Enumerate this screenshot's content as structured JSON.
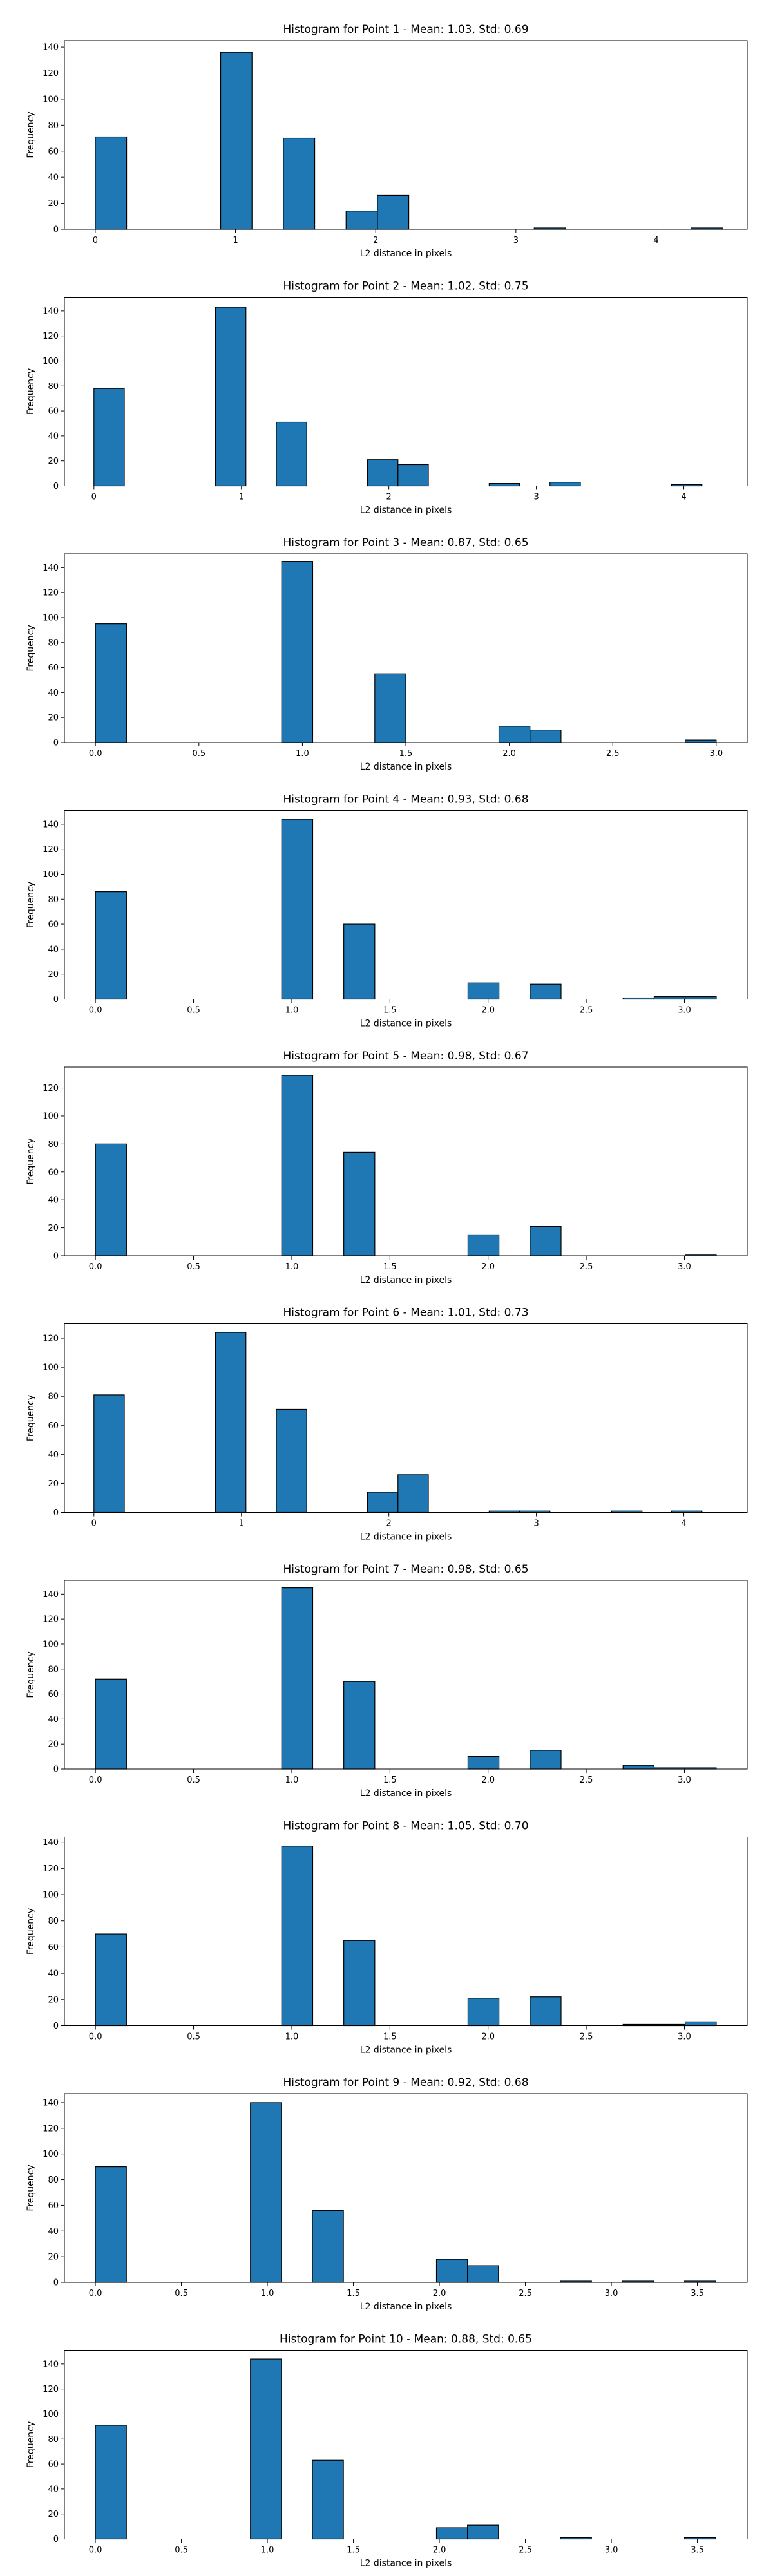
{
  "chart_data": [
    {
      "type": "bar",
      "title": "Histogram for Point 1 - Mean: 1.03, Std: 0.69",
      "xlabel": "L2 distance in pixels",
      "ylabel": "Frequency",
      "xlim": [
        -0.22,
        4.65
      ],
      "ylim": [
        0,
        145
      ],
      "xticks": [
        0,
        1,
        2,
        3,
        4
      ],
      "xtick_labels": [
        "0",
        "1",
        "2",
        "3",
        "4"
      ],
      "yticks": [
        0,
        20,
        40,
        60,
        80,
        100,
        120,
        140
      ],
      "ytick_labels": [
        "0",
        "20",
        "40",
        "60",
        "80",
        "100",
        "120",
        "140"
      ],
      "grid": false,
      "bars": [
        {
          "x0": 0.0,
          "x1": 0.2236,
          "value": 71
        },
        {
          "x0": 0.8944,
          "x1": 1.118,
          "value": 136
        },
        {
          "x0": 1.3416,
          "x1": 1.5652,
          "value": 70
        },
        {
          "x0": 1.7889,
          "x1": 2.0125,
          "value": 14
        },
        {
          "x0": 2.0125,
          "x1": 2.2361,
          "value": 26
        },
        {
          "x0": 3.1305,
          "x1": 3.3541,
          "value": 1
        },
        {
          "x0": 4.2485,
          "x1": 4.4721,
          "value": 1
        }
      ]
    },
    {
      "type": "bar",
      "title": "Histogram for Point 2 - Mean: 1.02, Std: 0.75",
      "xlabel": "L2 distance in pixels",
      "ylabel": "Frequency",
      "xlim": [
        -0.2,
        4.43
      ],
      "ylim": [
        0,
        151
      ],
      "xticks": [
        0,
        1,
        2,
        3,
        4
      ],
      "xtick_labels": [
        "0",
        "1",
        "2",
        "3",
        "4"
      ],
      "yticks": [
        0,
        20,
        40,
        60,
        80,
        100,
        120,
        140
      ],
      "ytick_labels": [
        "0",
        "20",
        "40",
        "60",
        "80",
        "100",
        "120",
        "140"
      ],
      "grid": false,
      "bars": [
        {
          "x0": 0.0,
          "x1": 0.2062,
          "value": 78
        },
        {
          "x0": 0.8246,
          "x1": 1.0308,
          "value": 143
        },
        {
          "x0": 1.2369,
          "x1": 1.4431,
          "value": 51
        },
        {
          "x0": 1.8554,
          "x1": 2.0616,
          "value": 21
        },
        {
          "x0": 2.0616,
          "x1": 2.2678,
          "value": 17
        },
        {
          "x0": 2.6801,
          "x1": 2.8863,
          "value": 2
        },
        {
          "x0": 3.0924,
          "x1": 3.2986,
          "value": 3
        },
        {
          "x0": 3.917,
          "x1": 4.1231,
          "value": 1
        }
      ]
    },
    {
      "type": "bar",
      "title": "Histogram for Point 3 - Mean: 0.87, Std: 0.65",
      "xlabel": "L2 distance in pixels",
      "ylabel": "Frequency",
      "xlim": [
        -0.15,
        3.15
      ],
      "ylim": [
        0,
        151
      ],
      "xticks": [
        0,
        0.5,
        1,
        1.5,
        2,
        2.5,
        3
      ],
      "xtick_labels": [
        "0.0",
        "0.5",
        "1.0",
        "1.5",
        "2.0",
        "2.5",
        "3.0"
      ],
      "yticks": [
        0,
        20,
        40,
        60,
        80,
        100,
        120,
        140
      ],
      "ytick_labels": [
        "0",
        "20",
        "40",
        "60",
        "80",
        "100",
        "120",
        "140"
      ],
      "grid": false,
      "bars": [
        {
          "x0": 0.0,
          "x1": 0.15,
          "value": 95
        },
        {
          "x0": 0.9,
          "x1": 1.05,
          "value": 145
        },
        {
          "x0": 1.35,
          "x1": 1.5,
          "value": 55
        },
        {
          "x0": 1.95,
          "x1": 2.1,
          "value": 13
        },
        {
          "x0": 2.1,
          "x1": 2.25,
          "value": 10
        },
        {
          "x0": 2.85,
          "x1": 3.0,
          "value": 2
        }
      ]
    },
    {
      "type": "bar",
      "title": "Histogram for Point 4 - Mean: 0.93, Std: 0.68",
      "xlabel": "L2 distance in pixels",
      "ylabel": "Frequency",
      "xlim": [
        -0.158,
        3.32
      ],
      "ylim": [
        0,
        151
      ],
      "xticks": [
        0,
        0.5,
        1,
        1.5,
        2,
        2.5,
        3
      ],
      "xtick_labels": [
        "0.0",
        "0.5",
        "1.0",
        "1.5",
        "2.0",
        "2.5",
        "3.0"
      ],
      "yticks": [
        0,
        20,
        40,
        60,
        80,
        100,
        120,
        140
      ],
      "ytick_labels": [
        "0",
        "20",
        "40",
        "60",
        "80",
        "100",
        "120",
        "140"
      ],
      "grid": false,
      "bars": [
        {
          "x0": 0.0,
          "x1": 0.1581,
          "value": 86
        },
        {
          "x0": 0.9487,
          "x1": 1.1068,
          "value": 144
        },
        {
          "x0": 1.2649,
          "x1": 1.423,
          "value": 60
        },
        {
          "x0": 1.8974,
          "x1": 2.0555,
          "value": 13
        },
        {
          "x0": 2.2136,
          "x1": 2.3717,
          "value": 12
        },
        {
          "x0": 2.6876,
          "x1": 2.8457,
          "value": 1
        },
        {
          "x0": 2.8457,
          "x1": 3.0038,
          "value": 2
        },
        {
          "x0": 3.0038,
          "x1": 3.1623,
          "value": 2
        }
      ]
    },
    {
      "type": "bar",
      "title": "Histogram for Point 5 - Mean: 0.98, Std: 0.67",
      "xlabel": "L2 distance in pixels",
      "ylabel": "Frequency",
      "xlim": [
        -0.158,
        3.32
      ],
      "ylim": [
        0,
        135
      ],
      "xticks": [
        0,
        0.5,
        1,
        1.5,
        2,
        2.5,
        3
      ],
      "xtick_labels": [
        "0.0",
        "0.5",
        "1.0",
        "1.5",
        "2.0",
        "2.5",
        "3.0"
      ],
      "yticks": [
        0,
        20,
        40,
        60,
        80,
        100,
        120
      ],
      "ytick_labels": [
        "0",
        "20",
        "40",
        "60",
        "80",
        "100",
        "120"
      ],
      "grid": false,
      "bars": [
        {
          "x0": 0.0,
          "x1": 0.1581,
          "value": 80
        },
        {
          "x0": 0.9487,
          "x1": 1.1068,
          "value": 129
        },
        {
          "x0": 1.2649,
          "x1": 1.423,
          "value": 74
        },
        {
          "x0": 1.8974,
          "x1": 2.0555,
          "value": 15
        },
        {
          "x0": 2.2136,
          "x1": 2.3717,
          "value": 21
        },
        {
          "x0": 3.0038,
          "x1": 3.1623,
          "value": 1
        }
      ]
    },
    {
      "type": "bar",
      "title": "Histogram for Point 6 - Mean: 1.01, Std: 0.73",
      "xlabel": "L2 distance in pixels",
      "ylabel": "Frequency",
      "xlim": [
        -0.2,
        4.43
      ],
      "ylim": [
        0,
        130
      ],
      "xticks": [
        0,
        1,
        2,
        3,
        4
      ],
      "xtick_labels": [
        "0",
        "1",
        "2",
        "3",
        "4"
      ],
      "yticks": [
        0,
        20,
        40,
        60,
        80,
        100,
        120
      ],
      "ytick_labels": [
        "0",
        "20",
        "40",
        "60",
        "80",
        "100",
        "120"
      ],
      "grid": false,
      "bars": [
        {
          "x0": 0.0,
          "x1": 0.2062,
          "value": 81
        },
        {
          "x0": 0.8246,
          "x1": 1.0308,
          "value": 124
        },
        {
          "x0": 1.2369,
          "x1": 1.4431,
          "value": 71
        },
        {
          "x0": 1.8554,
          "x1": 2.0616,
          "value": 14
        },
        {
          "x0": 2.0616,
          "x1": 2.2678,
          "value": 26
        },
        {
          "x0": 2.6801,
          "x1": 2.8863,
          "value": 1
        },
        {
          "x0": 2.8863,
          "x1": 3.0924,
          "value": 1
        },
        {
          "x0": 3.5108,
          "x1": 3.717,
          "value": 1
        },
        {
          "x0": 3.917,
          "x1": 4.1231,
          "value": 1
        }
      ]
    },
    {
      "type": "bar",
      "title": "Histogram for Point 7 - Mean: 0.98, Std: 0.65",
      "xlabel": "L2 distance in pixels",
      "ylabel": "Frequency",
      "xlim": [
        -0.158,
        3.32
      ],
      "ylim": [
        0,
        151
      ],
      "xticks": [
        0,
        0.5,
        1,
        1.5,
        2,
        2.5,
        3
      ],
      "xtick_labels": [
        "0.0",
        "0.5",
        "1.0",
        "1.5",
        "2.0",
        "2.5",
        "3.0"
      ],
      "yticks": [
        0,
        20,
        40,
        60,
        80,
        100,
        120,
        140
      ],
      "ytick_labels": [
        "0",
        "20",
        "40",
        "60",
        "80",
        "100",
        "120",
        "140"
      ],
      "grid": false,
      "bars": [
        {
          "x0": 0.0,
          "x1": 0.1581,
          "value": 72
        },
        {
          "x0": 0.9487,
          "x1": 1.1068,
          "value": 145
        },
        {
          "x0": 1.2649,
          "x1": 1.423,
          "value": 70
        },
        {
          "x0": 1.8974,
          "x1": 2.0555,
          "value": 10
        },
        {
          "x0": 2.2136,
          "x1": 2.3717,
          "value": 15
        },
        {
          "x0": 2.6876,
          "x1": 2.8457,
          "value": 3
        },
        {
          "x0": 2.8457,
          "x1": 3.0038,
          "value": 1
        },
        {
          "x0": 3.0038,
          "x1": 3.1623,
          "value": 1
        }
      ]
    },
    {
      "type": "bar",
      "title": "Histogram for Point 8 - Mean: 1.05, Std: 0.70",
      "xlabel": "L2 distance in pixels",
      "ylabel": "Frequency",
      "xlim": [
        -0.158,
        3.32
      ],
      "ylim": [
        0,
        144
      ],
      "xticks": [
        0,
        0.5,
        1,
        1.5,
        2,
        2.5,
        3
      ],
      "xtick_labels": [
        "0.0",
        "0.5",
        "1.0",
        "1.5",
        "2.0",
        "2.5",
        "3.0"
      ],
      "yticks": [
        0,
        20,
        40,
        60,
        80,
        100,
        120,
        140
      ],
      "ytick_labels": [
        "0",
        "20",
        "40",
        "60",
        "80",
        "100",
        "120",
        "140"
      ],
      "grid": false,
      "bars": [
        {
          "x0": 0.0,
          "x1": 0.1581,
          "value": 70
        },
        {
          "x0": 0.9487,
          "x1": 1.1068,
          "value": 137
        },
        {
          "x0": 1.2649,
          "x1": 1.423,
          "value": 65
        },
        {
          "x0": 1.8974,
          "x1": 2.0555,
          "value": 21
        },
        {
          "x0": 2.2136,
          "x1": 2.3717,
          "value": 22
        },
        {
          "x0": 2.6876,
          "x1": 2.8457,
          "value": 1
        },
        {
          "x0": 2.8457,
          "x1": 3.0038,
          "value": 1
        },
        {
          "x0": 3.0038,
          "x1": 3.1623,
          "value": 3
        }
      ]
    },
    {
      "type": "bar",
      "title": "Histogram for Point 9 - Mean: 0.92, Std: 0.68",
      "xlabel": "L2 distance in pixels",
      "ylabel": "Frequency",
      "xlim": [
        -0.18,
        3.79
      ],
      "ylim": [
        0,
        147
      ],
      "xticks": [
        0,
        0.5,
        1,
        1.5,
        2,
        2.5,
        3,
        3.5
      ],
      "xtick_labels": [
        "0.0",
        "0.5",
        "1.0",
        "1.5",
        "2.0",
        "2.5",
        "3.0",
        "3.5"
      ],
      "yticks": [
        0,
        20,
        40,
        60,
        80,
        100,
        120,
        140
      ],
      "ytick_labels": [
        "0",
        "20",
        "40",
        "60",
        "80",
        "100",
        "120",
        "140"
      ],
      "grid": false,
      "bars": [
        {
          "x0": 0.0,
          "x1": 0.1803,
          "value": 90
        },
        {
          "x0": 0.9014,
          "x1": 1.0817,
          "value": 140
        },
        {
          "x0": 1.262,
          "x1": 1.4422,
          "value": 56
        },
        {
          "x0": 1.983,
          "x1": 2.1633,
          "value": 18
        },
        {
          "x0": 2.1633,
          "x1": 2.3436,
          "value": 13
        },
        {
          "x0": 2.7042,
          "x1": 2.8845,
          "value": 1
        },
        {
          "x0": 3.0648,
          "x1": 3.2451,
          "value": 1
        },
        {
          "x0": 3.4254,
          "x1": 3.6056,
          "value": 1
        }
      ]
    },
    {
      "type": "bar",
      "title": "Histogram for Point 10 - Mean: 0.88, Std: 0.65",
      "xlabel": "L2 distance in pixels",
      "ylabel": "Frequency",
      "xlim": [
        -0.18,
        3.79
      ],
      "ylim": [
        0,
        151
      ],
      "xticks": [
        0,
        0.5,
        1,
        1.5,
        2,
        2.5,
        3,
        3.5
      ],
      "xtick_labels": [
        "0.0",
        "0.5",
        "1.0",
        "1.5",
        "2.0",
        "2.5",
        "3.0",
        "3.5"
      ],
      "yticks": [
        0,
        20,
        40,
        60,
        80,
        100,
        120,
        140
      ],
      "ytick_labels": [
        "0",
        "20",
        "40",
        "60",
        "80",
        "100",
        "120",
        "140"
      ],
      "grid": false,
      "bars": [
        {
          "x0": 0.0,
          "x1": 0.1803,
          "value": 91
        },
        {
          "x0": 0.9014,
          "x1": 1.0817,
          "value": 144
        },
        {
          "x0": 1.262,
          "x1": 1.4422,
          "value": 63
        },
        {
          "x0": 1.983,
          "x1": 2.1633,
          "value": 9
        },
        {
          "x0": 2.1633,
          "x1": 2.3436,
          "value": 11
        },
        {
          "x0": 2.7042,
          "x1": 2.8845,
          "value": 1
        },
        {
          "x0": 3.4254,
          "x1": 3.6056,
          "value": 1
        }
      ]
    }
  ],
  "colors": {
    "bar_fill": "#1f77b4",
    "bar_edge": "#000000",
    "background": "#ffffff"
  }
}
